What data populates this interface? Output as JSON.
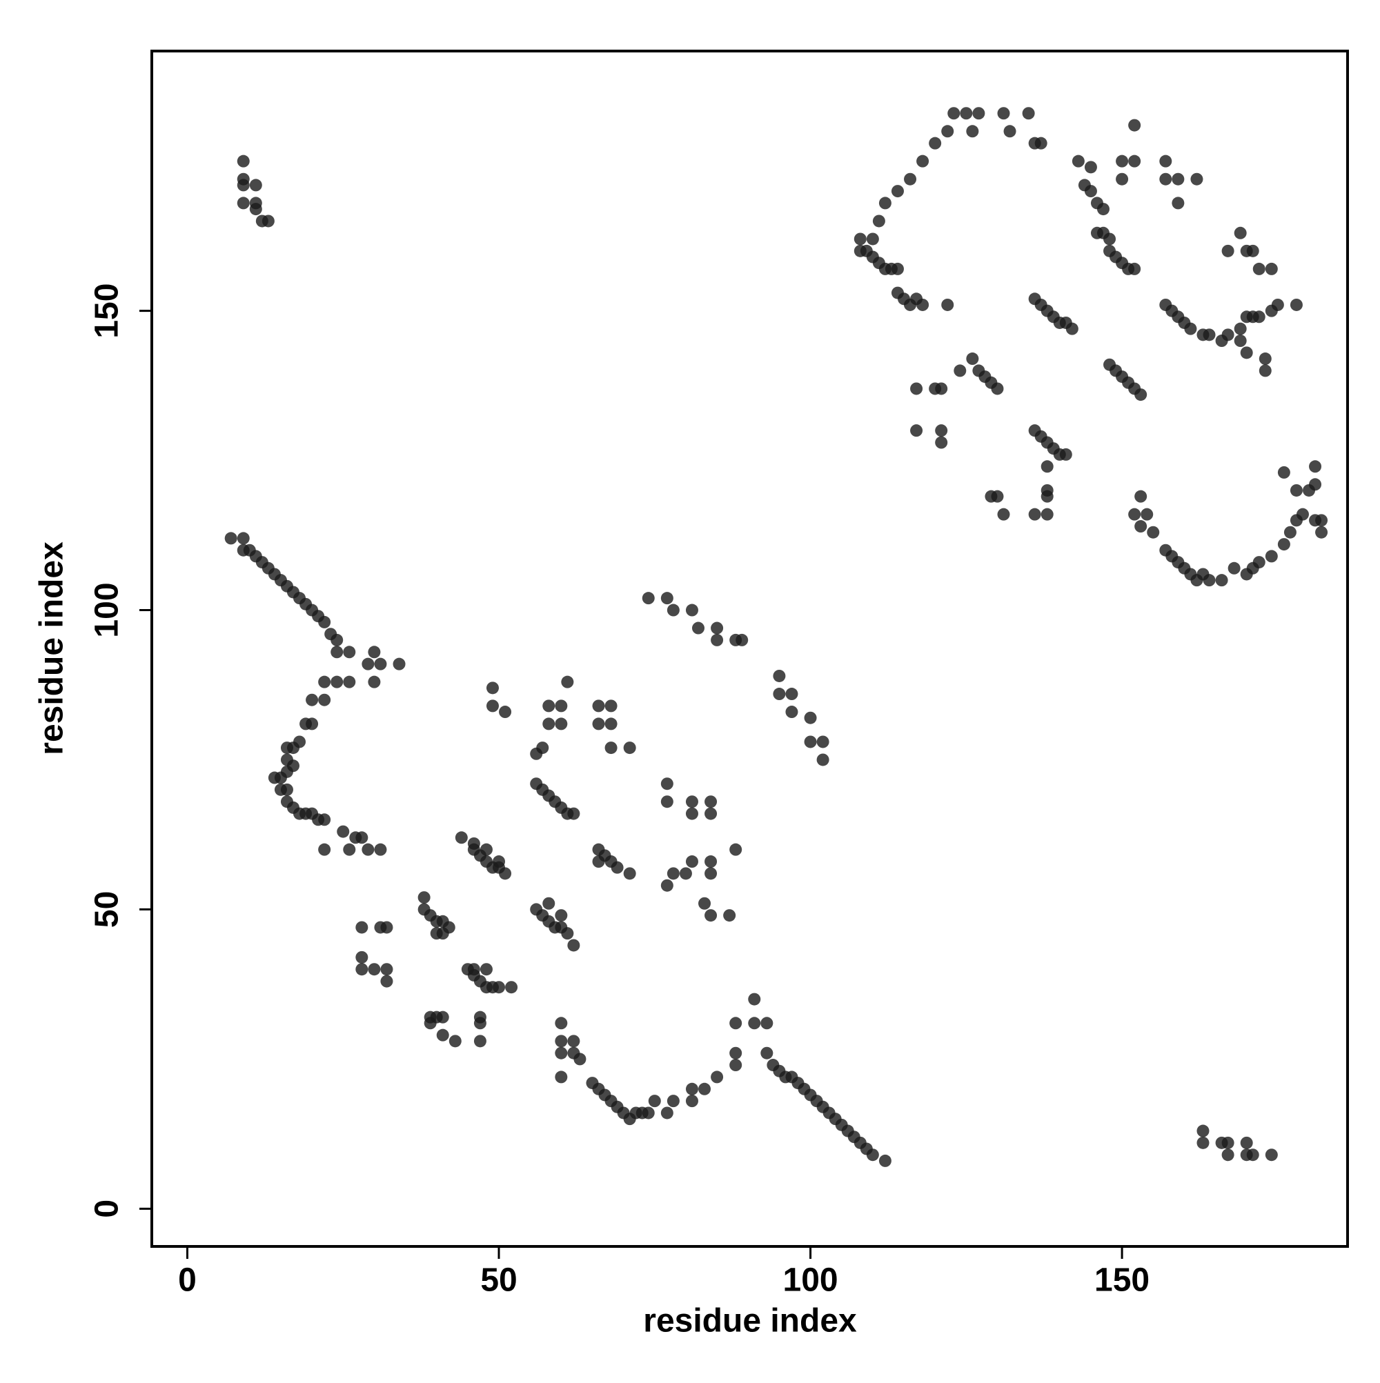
{
  "chart_data": {
    "type": "scatter",
    "xlabel": "residue index",
    "ylabel": "residue index",
    "color": "#1a1a1a",
    "xlim": [
      -5.7,
      186.2
    ],
    "ylim": [
      -6.3,
      193.4
    ],
    "xticks": [
      0,
      50,
      100,
      150
    ],
    "yticks": [
      0,
      50,
      100,
      150
    ],
    "x": [
      9,
      9,
      9,
      11,
      9,
      11,
      11,
      12,
      13,
      7,
      9,
      9,
      10,
      11,
      12,
      13,
      14,
      15,
      16,
      17,
      18,
      19,
      20,
      21,
      22,
      23,
      24,
      24,
      26,
      29,
      30,
      31,
      30,
      34,
      22,
      24,
      26,
      20,
      22,
      19,
      20,
      18,
      16,
      17,
      16,
      16,
      17,
      14,
      15,
      15,
      16,
      16,
      17,
      18,
      19,
      20,
      21,
      22,
      25,
      27,
      28,
      26,
      29,
      31,
      22,
      28,
      31,
      32,
      28,
      28,
      30,
      32,
      32,
      38,
      38,
      39,
      40,
      41,
      42,
      40,
      41,
      39,
      40,
      41,
      39,
      41,
      43,
      47,
      47,
      47,
      44,
      46,
      47,
      48,
      49,
      50,
      51,
      46,
      48,
      50,
      49,
      49,
      51,
      45,
      46,
      47,
      48,
      49,
      50,
      52,
      46,
      48,
      56,
      57,
      58,
      60,
      58,
      60,
      61,
      56,
      57,
      58,
      59,
      60,
      61,
      62,
      56,
      57,
      58,
      59,
      60,
      61,
      62,
      58,
      60,
      60,
      60,
      62,
      60,
      63,
      62,
      60,
      65,
      66,
      67,
      68,
      69,
      70,
      71,
      72,
      73,
      74,
      75,
      77,
      78,
      81,
      81,
      66,
      68,
      66,
      68,
      68,
      71,
      66,
      67,
      68,
      69,
      71,
      66,
      74,
      77,
      78,
      81,
      82,
      85,
      85,
      88,
      89,
      77,
      77,
      81,
      84,
      81,
      84,
      78,
      80,
      81,
      84,
      84,
      77,
      83,
      84,
      87,
      88,
      83,
      85,
      88,
      88,
      88,
      91,
      91,
      93,
      93,
      94,
      95,
      96,
      97,
      98,
      99,
      100,
      101,
      102,
      103,
      104,
      105,
      106,
      107,
      108,
      109,
      110,
      112,
      95,
      95,
      97,
      97,
      100,
      100,
      102,
      102,
      108,
      109,
      110,
      111,
      112,
      113,
      114,
      108,
      110,
      111,
      112,
      114,
      116,
      118,
      120,
      122,
      123,
      125,
      126,
      127,
      131,
      132,
      135,
      136,
      137,
      114,
      115,
      116,
      117,
      118,
      122,
      117,
      117,
      120,
      121,
      121,
      121,
      124,
      126,
      127,
      128,
      129,
      130,
      129,
      130,
      131,
      136,
      137,
      138,
      139,
      140,
      141,
      142,
      136,
      137,
      138,
      139,
      140,
      141,
      138,
      136,
      138,
      138,
      138,
      143,
      144,
      145,
      146,
      147,
      145,
      146,
      147,
      148,
      148,
      149,
      150,
      151,
      152,
      150,
      150,
      152,
      152,
      148,
      149,
      150,
      151,
      152,
      153,
      153,
      152,
      154,
      153,
      155,
      157,
      157,
      159,
      159,
      162,
      157,
      158,
      159,
      160,
      161,
      163,
      164,
      157,
      158,
      159,
      160,
      161,
      162,
      163,
      164,
      166,
      168,
      171,
      170,
      172,
      174,
      176,
      177,
      178,
      179,
      180,
      181,
      178,
      176,
      181,
      181,
      182,
      182,
      167,
      169,
      170,
      171,
      172,
      170,
      171,
      172,
      169,
      167,
      166,
      169,
      170,
      173,
      173,
      174,
      175,
      178,
      174,
      163,
      163,
      166,
      167,
      167,
      170,
      170,
      171,
      174
    ],
    "y": [
      175,
      172,
      171,
      171,
      168,
      168,
      167,
      165,
      165,
      112,
      112,
      110,
      110,
      109,
      108,
      107,
      106,
      105,
      104,
      103,
      102,
      101,
      100,
      99,
      98,
      96,
      95,
      93,
      93,
      91,
      93,
      91,
      88,
      91,
      88,
      88,
      88,
      85,
      85,
      81,
      81,
      78,
      77,
      77,
      75,
      73,
      74,
      72,
      72,
      70,
      70,
      68,
      67,
      66,
      66,
      66,
      65,
      65,
      63,
      62,
      62,
      60,
      60,
      60,
      60,
      47,
      47,
      47,
      42,
      40,
      40,
      40,
      38,
      52,
      50,
      49,
      48,
      48,
      47,
      46,
      46,
      32,
      32,
      32,
      31,
      29,
      28,
      32,
      31,
      28,
      62,
      60,
      59,
      58,
      57,
      57,
      56,
      61,
      60,
      58,
      87,
      84,
      83,
      40,
      39,
      38,
      37,
      37,
      37,
      37,
      40,
      40,
      76,
      77,
      84,
      84,
      81,
      81,
      88,
      71,
      70,
      69,
      68,
      67,
      66,
      66,
      50,
      49,
      48,
      47,
      47,
      46,
      44,
      51,
      49,
      31,
      28,
      28,
      26,
      25,
      26,
      22,
      21,
      20,
      19,
      18,
      17,
      16,
      15,
      16,
      16,
      16,
      18,
      16,
      18,
      20,
      18,
      84,
      84,
      81,
      81,
      77,
      77,
      60,
      59,
      58,
      57,
      56,
      58,
      102,
      102,
      100,
      100,
      97,
      97,
      95,
      95,
      95,
      71,
      68,
      68,
      68,
      66,
      66,
      56,
      56,
      58,
      58,
      56,
      54,
      51,
      49,
      49,
      60,
      20,
      22,
      24,
      26,
      31,
      31,
      35,
      31,
      26,
      24,
      23,
      22,
      22,
      21,
      20,
      19,
      18,
      17,
      16,
      15,
      14,
      13,
      12,
      11,
      10,
      9,
      8,
      89,
      86,
      86,
      83,
      82,
      78,
      78,
      75,
      162,
      160,
      159,
      158,
      157,
      157,
      157,
      160,
      162,
      165,
      168,
      170,
      172,
      175,
      178,
      180,
      183,
      183,
      180,
      183,
      183,
      180,
      183,
      178,
      178,
      153,
      152,
      151,
      152,
      151,
      151,
      137,
      130,
      137,
      137,
      130,
      128,
      140,
      142,
      140,
      139,
      138,
      137,
      119,
      119,
      116,
      152,
      151,
      150,
      149,
      148,
      148,
      147,
      130,
      129,
      128,
      127,
      126,
      126,
      124,
      116,
      116,
      120,
      119,
      175,
      171,
      170,
      168,
      167,
      174,
      163,
      163,
      162,
      160,
      159,
      158,
      157,
      157,
      175,
      172,
      175,
      181,
      141,
      140,
      139,
      138,
      137,
      136,
      119,
      116,
      116,
      114,
      113,
      175,
      172,
      172,
      168,
      172,
      151,
      150,
      149,
      148,
      147,
      146,
      146,
      110,
      109,
      108,
      107,
      106,
      105,
      106,
      105,
      105,
      107,
      107,
      106,
      108,
      109,
      111,
      113,
      115,
      116,
      120,
      121,
      120,
      123,
      124,
      115,
      115,
      113,
      160,
      163,
      160,
      160,
      157,
      149,
      149,
      149,
      147,
      146,
      145,
      145,
      143,
      142,
      140,
      150,
      151,
      151,
      157,
      13,
      11,
      11,
      9,
      11,
      11,
      9,
      9,
      9
    ]
  }
}
